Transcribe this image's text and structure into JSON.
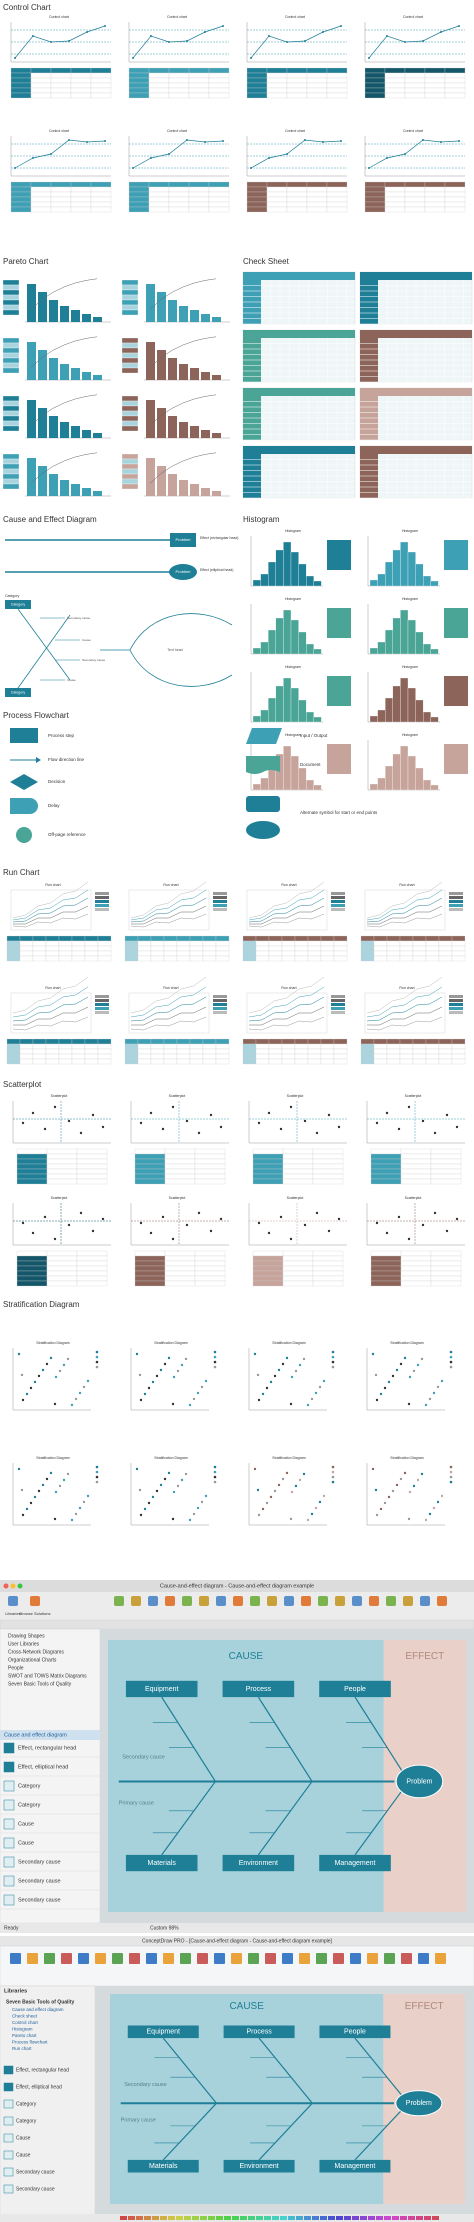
{
  "sections": {
    "control": {
      "title": "Control Chart",
      "thumb_title": "Control chart"
    },
    "pareto": {
      "title": "Pareto Chart"
    },
    "check": {
      "title": "Check Sheet"
    },
    "cause": {
      "title": "Cause and Effect Diagram",
      "problem": "Problem",
      "effect_rect": "Effect (rectangular head)",
      "effect_ellipse": "Effect (elliptical head)",
      "category": "Category",
      "cause": "Cause",
      "secondary": "Secondary cause",
      "text_head": "Text head"
    },
    "histogram": {
      "title": "Histogram",
      "thumb_title": "Histogram"
    },
    "flowchart": {
      "title": "Process Flowchart",
      "shapes": [
        "Process step",
        "Flow direction line",
        "Decision",
        "Delay",
        "Off-page reference",
        "Input / Output",
        "Document",
        "Alternate symbol for start or end points"
      ]
    },
    "run": {
      "title": "Run Chart",
      "thumb_title": "Run chart"
    },
    "scatter": {
      "title": "Scatterplot",
      "thumb_title": "Scatterplot"
    },
    "strat": {
      "title": "Stratification Diagram",
      "thumb_title": "Stratification Diagram"
    }
  },
  "diagram": {
    "cause": "CAUSE",
    "effect": "EFFECT",
    "top": [
      "Equipment",
      "Process",
      "People"
    ],
    "bottom": [
      "Materials",
      "Environment",
      "Management"
    ],
    "problem": "Problem",
    "secondary": "Secondary cause",
    "primary": "Primary cause"
  },
  "app_mac": {
    "title": "Cause-and-effect diagram - Cause-and-effect diagram example",
    "toolbar": [
      "Libraries",
      "Browse Solutions"
    ],
    "tree": [
      "Drawing Shapes",
      "User Libraries",
      "Cross-Network Diagrams",
      "Organizational Charts",
      "People",
      "SWOT and TOWS Matrix Diagrams",
      "Seven Basic Tools of Quality"
    ],
    "library": "Cause and effect diagram",
    "items": [
      "Effect, rectangular head",
      "Effect, elliptical head",
      "Category",
      "Category",
      "Cause",
      "Cause",
      "Secondary cause",
      "Secondary cause",
      "Secondary cause"
    ],
    "status": "Ready",
    "zoom": "Custom 98%"
  },
  "app_win": {
    "title": "ConceptDraw PRO - [Cause-and-effect diagram - Cause-and-effect diagram example]",
    "sidebar_title": "Libraries",
    "group": "Seven Basic Tools of Quality",
    "tree": [
      "Cause and effect diagram",
      "Check sheet",
      "Control chart",
      "Histogram",
      "Pareto chart",
      "Process flowchart",
      "Run chart"
    ],
    "items": [
      "Effect, rectangular head",
      "Effect, elliptical head",
      "Category",
      "Category",
      "Cause",
      "Cause",
      "Secondary cause",
      "Secondary cause"
    ]
  }
}
